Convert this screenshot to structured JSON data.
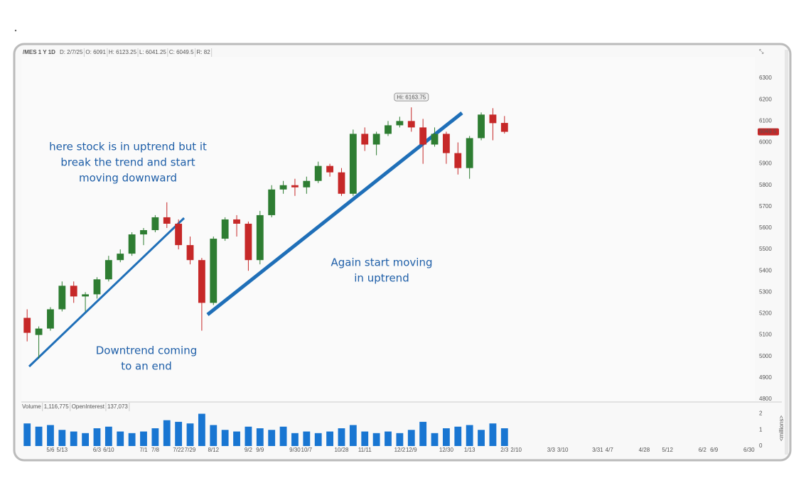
{
  "chart_data": {
    "type": "candlestick",
    "header": {
      "symbol": "/MES 1 Y 1D",
      "fields": [
        "D: 2/7/25",
        "O: 6091",
        "H: 6123.25",
        "L: 6041.25",
        "C: 6049.5",
        "R: 82"
      ]
    },
    "hi_label": "Hi: 6163.75",
    "last_price": 6049.5,
    "annotations": [
      "here stock is in uptrend but it",
      "break the trend and start",
      "moving downward",
      "Downtrend coming",
      "to an end",
      "Again start moving",
      "in uptrend"
    ],
    "categories": [
      null,
      null,
      "5/6",
      "5/13",
      null,
      null,
      "6/3",
      "6/10",
      null,
      null,
      "7/1",
      "7/8",
      null,
      "7/22",
      "7/29",
      null,
      "8/12",
      null,
      null,
      "9/2",
      "9/9",
      null,
      null,
      "9/30",
      "10/7",
      null,
      null,
      "10/28",
      null,
      "11/11",
      null,
      null,
      "12/2",
      "12/9",
      null,
      null,
      "12/30",
      null,
      "1/13",
      null,
      null,
      "2/3",
      "2/10",
      null,
      null,
      "3/3",
      "3/10",
      null,
      null,
      "3/31",
      "4/7",
      null,
      null,
      "4/28",
      null,
      "5/12",
      null,
      null,
      "6/2",
      "6/9",
      null,
      null,
      "6/30"
    ],
    "open": [
      5180,
      5100,
      5130,
      5220,
      5330,
      5280,
      5290,
      5360,
      5450,
      5480,
      5570,
      5590,
      5650,
      5620,
      5520,
      5450,
      5250,
      5550,
      5640,
      5620,
      5450,
      5660,
      5780,
      5800,
      5790,
      5820,
      5890,
      5860,
      5760,
      6040,
      5990,
      6040,
      6080,
      6100,
      6070,
      5990,
      6040,
      5950,
      5880,
      6020,
      6130,
      6091,
      null,
      null,
      null,
      null,
      null,
      null,
      null,
      null,
      null,
      null,
      null,
      null,
      null,
      null,
      null,
      null,
      null,
      null,
      null,
      null,
      null
    ],
    "high": [
      5220,
      5140,
      5230,
      5350,
      5350,
      5300,
      5370,
      5470,
      5500,
      5580,
      5600,
      5660,
      5720,
      5640,
      5560,
      5460,
      5560,
      5650,
      5660,
      5630,
      5680,
      5800,
      5820,
      5830,
      5840,
      5910,
      5900,
      5880,
      6060,
      6070,
      6050,
      6100,
      6120,
      6163.75,
      6110,
      6070,
      6050,
      6000,
      6030,
      6140,
      6160,
      6123.25,
      null,
      null,
      null,
      null,
      null,
      null,
      null,
      null,
      null,
      null,
      null,
      null,
      null,
      null,
      null,
      null,
      null,
      null,
      null,
      null,
      null
    ],
    "low": [
      5070,
      4990,
      5120,
      5210,
      5250,
      5210,
      5270,
      5350,
      5440,
      5470,
      5520,
      5580,
      5600,
      5500,
      5430,
      5120,
      5240,
      5540,
      5560,
      5400,
      5430,
      5650,
      5760,
      5750,
      5760,
      5810,
      5840,
      5750,
      5750,
      5960,
      5940,
      6030,
      6070,
      6050,
      5900,
      5980,
      5900,
      5850,
      5830,
      6010,
      6010,
      6041.25,
      null,
      null,
      null,
      null,
      null,
      null,
      null,
      null,
      null,
      null,
      null,
      null,
      null,
      null,
      null,
      null,
      null,
      null,
      null,
      null,
      null
    ],
    "close": [
      5110,
      5130,
      5220,
      5330,
      5280,
      5290,
      5360,
      5450,
      5480,
      5570,
      5590,
      5650,
      5620,
      5520,
      5450,
      5250,
      5550,
      5640,
      5620,
      5450,
      5660,
      5780,
      5800,
      5790,
      5820,
      5890,
      5860,
      5760,
      6040,
      5990,
      6040,
      6080,
      6100,
      6070,
      5990,
      6040,
      5950,
      5880,
      6020,
      6130,
      6090,
      6049.5,
      null,
      null,
      null,
      null,
      null,
      null,
      null,
      null,
      null,
      null,
      null,
      null,
      null,
      null,
      null,
      null,
      null,
      null,
      null,
      null,
      null
    ],
    "ylim": [
      4790,
      6400
    ],
    "yticks": [
      4800,
      4900,
      5000,
      5100,
      5200,
      5300,
      5400,
      5500,
      5600,
      5700,
      5800,
      5900,
      6000,
      6100,
      6200,
      6300
    ],
    "volume_title": "Volume",
    "volume_total": "1,116,775",
    "oi_title": "OpenInterest",
    "oi_total": "137,073",
    "volume_unit": "<millions>",
    "volume": [
      1.4,
      1.2,
      1.3,
      1.0,
      0.9,
      0.8,
      1.1,
      1.2,
      0.9,
      0.8,
      0.9,
      1.1,
      1.6,
      1.5,
      1.4,
      2.0,
      1.3,
      1.0,
      0.9,
      1.2,
      1.1,
      1.0,
      1.2,
      0.8,
      0.9,
      0.8,
      0.9,
      1.1,
      1.3,
      0.9,
      0.8,
      0.9,
      0.8,
      1.0,
      1.5,
      0.8,
      1.1,
      1.2,
      1.3,
      1.0,
      1.4,
      1.1,
      null,
      null,
      null,
      null,
      null,
      null,
      null,
      null,
      null,
      null,
      null,
      null,
      null,
      null,
      null,
      null,
      null,
      null,
      null,
      null,
      null
    ],
    "vlim": [
      0,
      2.2
    ],
    "vticks": [
      0,
      1,
      2
    ],
    "up_color": "#2e7d32",
    "down_color": "#c62828",
    "volume_color": "#1976d2"
  }
}
